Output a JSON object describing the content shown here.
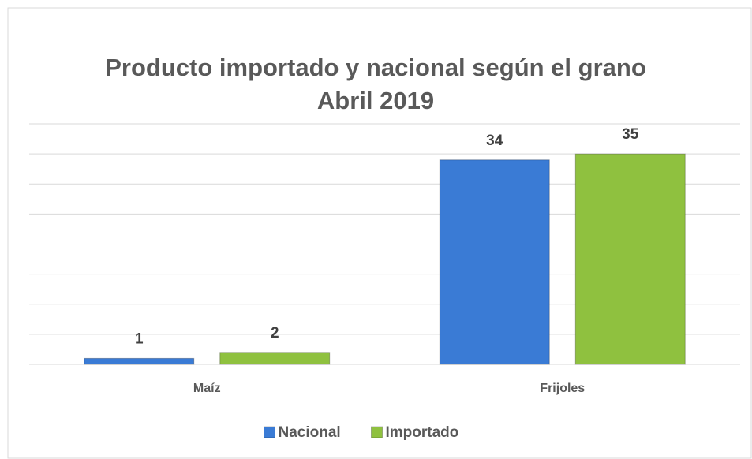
{
  "chart_data": {
    "type": "bar",
    "title": "Producto importado y nacional según el grano",
    "subtitle": "Abril 2019",
    "categories": [
      "Maíz",
      "Frijoles"
    ],
    "series": [
      {
        "name": "Nacional",
        "color": "#3a7bd5",
        "values": [
          1,
          34
        ]
      },
      {
        "name": "Importado",
        "color": "#8fc13f",
        "values": [
          2,
          35
        ]
      }
    ],
    "ylim": [
      0,
      40
    ],
    "yticks": [
      0,
      5,
      10,
      15,
      20,
      25,
      30,
      35,
      40
    ],
    "grid": true,
    "legend": "bottom"
  }
}
